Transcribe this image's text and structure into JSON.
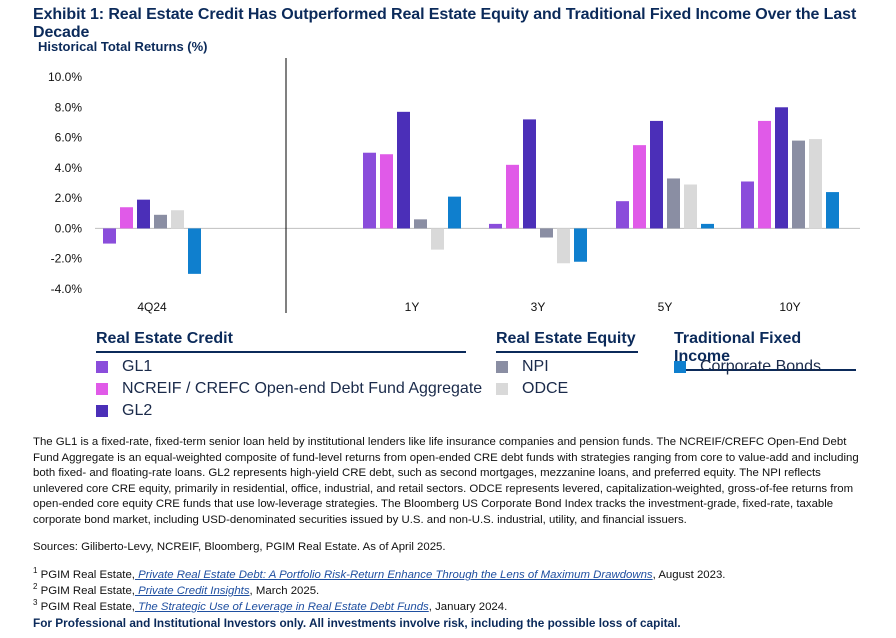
{
  "title": "Exhibit 1: Real Estate Credit Has Outperformed Real Estate Equity and Traditional Fixed Income Over the Last Decade",
  "y_axis_title": "Historical Total Returns (%)",
  "chart_data": {
    "type": "bar",
    "categories": [
      "4Q24",
      "1Y",
      "3Y",
      "5Y",
      "10Y"
    ],
    "ylim": [
      -4,
      10
    ],
    "yticks": [
      10,
      8,
      6,
      4,
      2,
      0,
      -2,
      -4
    ],
    "ytick_labels": [
      "10.0%",
      "8.0%",
      "6.0%",
      "4.0%",
      "2.0%",
      "0.0%",
      "-2.0%",
      "-4.0%"
    ],
    "grid": false,
    "series": [
      {
        "name": "GL1",
        "color": "#8a4ddb",
        "values": [
          -1.0,
          5.0,
          0.3,
          1.8,
          3.1
        ]
      },
      {
        "name": "NCREIF / CREFC Open-end Debt Fund Aggregate",
        "color": "#e05ae8",
        "values": [
          1.4,
          4.9,
          4.2,
          5.5,
          7.1
        ]
      },
      {
        "name": "GL2",
        "color": "#4b2fb8",
        "values": [
          1.9,
          7.7,
          7.2,
          7.1,
          8.0
        ]
      },
      {
        "name": "NPI",
        "color": "#8a8ea3",
        "values": [
          0.9,
          0.6,
          -0.6,
          3.3,
          5.8
        ]
      },
      {
        "name": "ODCE",
        "color": "#d9d9d9",
        "values": [
          1.2,
          -1.4,
          -2.3,
          2.9,
          5.9
        ]
      },
      {
        "name": "Corporate Bonds",
        "color": "#0f7fce",
        "values": [
          -3.0,
          2.1,
          -2.2,
          0.3,
          2.4
        ]
      }
    ]
  },
  "legend": {
    "groups": [
      {
        "heading": "Real Estate Credit",
        "items": [
          "GL1",
          "NCREIF / CREFC Open-end Debt Fund Aggregate",
          "GL2"
        ]
      },
      {
        "heading": "Real Estate Equity",
        "items": [
          "NPI",
          "ODCE"
        ]
      },
      {
        "heading": "Traditional Fixed Income",
        "items": [
          "Corporate Bonds"
        ]
      }
    ]
  },
  "notes": "The GL1 is a fixed-rate, fixed-term senior loan held by institutional lenders like life insurance companies and pension funds. The NCREIF/CREFC Open-End Debt Fund Aggregate is an equal-weighted composite of fund-level returns from open-ended CRE debt funds with strategies ranging from core to value-add and including both fixed- and floating-rate loans. GL2 represents high-yield CRE debt, such as second mortgages, mezzanine loans, and preferred equity. The NPI reflects unlevered core CRE equity, primarily in residential, office, industrial, and retail sectors. ODCE represents levered, capitalization-weighted, gross-of-fee returns from open-ended core equity CRE funds that use low-leverage strategies. The Bloomberg US Corporate Bond Index tracks the investment-grade, fixed-rate, taxable corporate bond market, including USD-denominated securities issued by U.S. and non-U.S. industrial, utility, and financial issuers.",
  "sources": "Sources: Giliberto-Levy, NCREIF, Bloomberg, PGIM Real Estate. As of April 2025.",
  "footnotes": [
    {
      "num": "1",
      "prefix": "PGIM Real Estate,",
      "link": " Private Real Estate Debt: A Portfolio Risk-Return Enhance Through the Lens of Maximum Drawdowns",
      "suffix": ", August 2023."
    },
    {
      "num": "2",
      "prefix": "PGIM Real Estate,",
      "link": " Private Credit Insights",
      "suffix": ", March 2025."
    },
    {
      "num": "3",
      "prefix": "PGIM Real Estate,",
      "link": " The Strategic Use of Leverage in Real Estate Debt Funds",
      "suffix": ", January 2024."
    }
  ],
  "disclaimer": "For Professional and Institutional Investors only. All investments involve risk, including the possible loss of capital."
}
